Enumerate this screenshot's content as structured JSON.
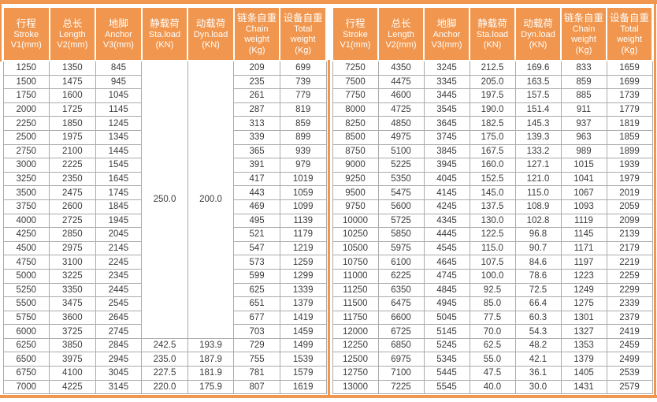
{
  "colors": {
    "accent_orange": "#F0964E",
    "grid_gray": "#ABABAB",
    "body_text": "#3C3C3C",
    "header_text": "#FFFFFF"
  },
  "headers": [
    {
      "lines": [
        "行程",
        "Stroke",
        "V1(mm)"
      ]
    },
    {
      "lines": [
        "总长",
        "Length",
        "V2(mm)"
      ]
    },
    {
      "lines": [
        "地脚",
        "Anchor",
        "V3(mm)"
      ]
    },
    {
      "lines": [
        "静载荷",
        "Sta.load",
        "(KN)"
      ]
    },
    {
      "lines": [
        "动载荷",
        "Dyn.load",
        "(KN)"
      ]
    },
    {
      "lines": [
        "链条自重",
        "Chain",
        "weight",
        "(Kg)"
      ]
    },
    {
      "lines": [
        "设备自重",
        "Total",
        "weight",
        "(Kg)"
      ]
    }
  ],
  "left_table": {
    "merged": {
      "cols": [
        3,
        4
      ],
      "values": [
        "250.0",
        "200.0"
      ],
      "rows": 20
    },
    "rows": [
      [
        "1250",
        "1350",
        "845",
        "",
        "",
        "209",
        "699"
      ],
      [
        "1500",
        "1475",
        "945",
        "",
        "",
        "235",
        "739"
      ],
      [
        "1750",
        "1600",
        "1045",
        "",
        "",
        "261",
        "779"
      ],
      [
        "2000",
        "1725",
        "1145",
        "",
        "",
        "287",
        "819"
      ],
      [
        "2250",
        "1850",
        "1245",
        "",
        "",
        "313",
        "859"
      ],
      [
        "2500",
        "1975",
        "1345",
        "",
        "",
        "339",
        "899"
      ],
      [
        "2750",
        "2100",
        "1445",
        "",
        "",
        "365",
        "939"
      ],
      [
        "3000",
        "2225",
        "1545",
        "",
        "",
        "391",
        "979"
      ],
      [
        "3250",
        "2350",
        "1645",
        "",
        "",
        "417",
        "1019"
      ],
      [
        "3500",
        "2475",
        "1745",
        "",
        "",
        "443",
        "1059"
      ],
      [
        "3750",
        "2600",
        "1845",
        "",
        "",
        "469",
        "1099"
      ],
      [
        "4000",
        "2725",
        "1945",
        "",
        "",
        "495",
        "1139"
      ],
      [
        "4250",
        "2850",
        "2045",
        "",
        "",
        "521",
        "1179"
      ],
      [
        "4500",
        "2975",
        "2145",
        "",
        "",
        "547",
        "1219"
      ],
      [
        "4750",
        "3100",
        "2245",
        "",
        "",
        "573",
        "1259"
      ],
      [
        "5000",
        "3225",
        "2345",
        "",
        "",
        "599",
        "1299"
      ],
      [
        "5250",
        "3350",
        "2445",
        "",
        "",
        "625",
        "1339"
      ],
      [
        "5500",
        "3475",
        "2545",
        "",
        "",
        "651",
        "1379"
      ],
      [
        "5750",
        "3600",
        "2645",
        "",
        "",
        "677",
        "1419"
      ],
      [
        "6000",
        "3725",
        "2745",
        "",
        "",
        "703",
        "1459"
      ],
      [
        "6250",
        "3850",
        "2845",
        "242.5",
        "193.9",
        "729",
        "1499"
      ],
      [
        "6500",
        "3975",
        "2945",
        "235.0",
        "187.9",
        "755",
        "1539"
      ],
      [
        "6750",
        "4100",
        "3045",
        "227.5",
        "181.9",
        "781",
        "1579"
      ],
      [
        "7000",
        "4225",
        "3145",
        "220.0",
        "175.9",
        "807",
        "1619"
      ]
    ]
  },
  "right_table": {
    "rows": [
      [
        "7250",
        "4350",
        "3245",
        "212.5",
        "169.6",
        "833",
        "1659"
      ],
      [
        "7500",
        "4475",
        "3345",
        "205.0",
        "163.5",
        "859",
        "1699"
      ],
      [
        "7750",
        "4600",
        "3445",
        "197.5",
        "157.5",
        "885",
        "1739"
      ],
      [
        "8000",
        "4725",
        "3545",
        "190.0",
        "151.4",
        "911",
        "1779"
      ],
      [
        "8250",
        "4850",
        "3645",
        "182.5",
        "145.3",
        "937",
        "1819"
      ],
      [
        "8500",
        "4975",
        "3745",
        "175.0",
        "139.3",
        "963",
        "1859"
      ],
      [
        "8750",
        "5100",
        "3845",
        "167.5",
        "133.2",
        "989",
        "1899"
      ],
      [
        "9000",
        "5225",
        "3945",
        "160.0",
        "127.1",
        "1015",
        "1939"
      ],
      [
        "9250",
        "5350",
        "4045",
        "152.5",
        "121.0",
        "1041",
        "1979"
      ],
      [
        "9500",
        "5475",
        "4145",
        "145.0",
        "115.0",
        "1067",
        "2019"
      ],
      [
        "9750",
        "5600",
        "4245",
        "137.5",
        "108.9",
        "1093",
        "2059"
      ],
      [
        "10000",
        "5725",
        "4345",
        "130.0",
        "102.8",
        "1119",
        "2099"
      ],
      [
        "10250",
        "5850",
        "4445",
        "122.5",
        "96.8",
        "1145",
        "2139"
      ],
      [
        "10500",
        "5975",
        "4545",
        "115.0",
        "90.7",
        "1171",
        "2179"
      ],
      [
        "10750",
        "6100",
        "4645",
        "107.5",
        "84.6",
        "1197",
        "2219"
      ],
      [
        "11000",
        "6225",
        "4745",
        "100.0",
        "78.6",
        "1223",
        "2259"
      ],
      [
        "11250",
        "6350",
        "4845",
        "92.5",
        "72.5",
        "1249",
        "2299"
      ],
      [
        "11500",
        "6475",
        "4945",
        "85.0",
        "66.4",
        "1275",
        "2339"
      ],
      [
        "11750",
        "6600",
        "5045",
        "77.5",
        "60.3",
        "1301",
        "2379"
      ],
      [
        "12000",
        "6725",
        "5145",
        "70.0",
        "54.3",
        "1327",
        "2419"
      ],
      [
        "12250",
        "6850",
        "5245",
        "62.5",
        "48.2",
        "1353",
        "2459"
      ],
      [
        "12500",
        "6975",
        "5345",
        "55.0",
        "42.1",
        "1379",
        "2499"
      ],
      [
        "12750",
        "7100",
        "5445",
        "47.5",
        "36.1",
        "1405",
        "2539"
      ],
      [
        "13000",
        "7225",
        "5545",
        "40.0",
        "30.0",
        "1431",
        "2579"
      ]
    ]
  }
}
